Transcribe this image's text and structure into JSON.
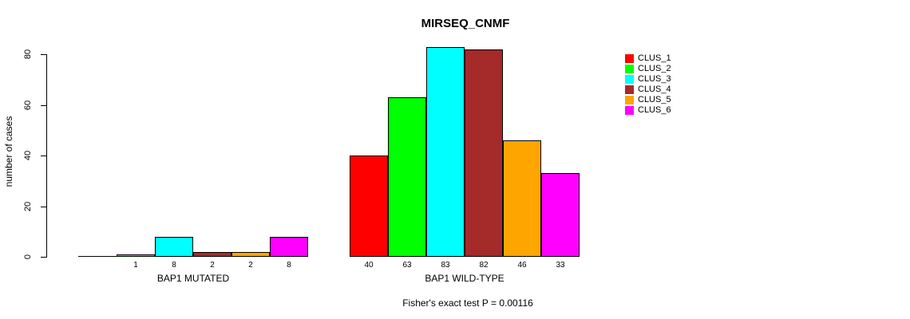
{
  "page": {
    "title": "MIRSEQ_CNMF"
  },
  "chart_data": {
    "type": "bar",
    "title": "MIRSEQ_CNMF",
    "ylabel": "number of cases",
    "xlabel": "",
    "ylim": [
      0,
      80
    ],
    "yticks": [
      0,
      20,
      40,
      60,
      80
    ],
    "grid": false,
    "legend_position": "right",
    "categories": [
      "BAP1 MUTATED",
      "BAP1 WILD-TYPE"
    ],
    "series": [
      {
        "name": "CLUS_1",
        "color": "#FF0000",
        "values": [
          0,
          40
        ]
      },
      {
        "name": "CLUS_2",
        "color": "#00FF00",
        "values": [
          1,
          63
        ]
      },
      {
        "name": "CLUS_3",
        "color": "#00FFFF",
        "values": [
          8,
          83
        ]
      },
      {
        "name": "CLUS_4",
        "color": "#A52A2A",
        "values": [
          2,
          82
        ]
      },
      {
        "name": "CLUS_5",
        "color": "#FFA500",
        "values": [
          2,
          46
        ]
      },
      {
        "name": "CLUS_6",
        "color": "#FF00FF",
        "values": [
          8,
          33
        ]
      }
    ],
    "bar_value_labels": [
      [
        "",
        "1",
        "8",
        "2",
        "2",
        "8"
      ],
      [
        "40",
        "63",
        "83",
        "82",
        "46",
        "33"
      ]
    ],
    "annotation": "Fisher's exact test P = 0.00116"
  }
}
